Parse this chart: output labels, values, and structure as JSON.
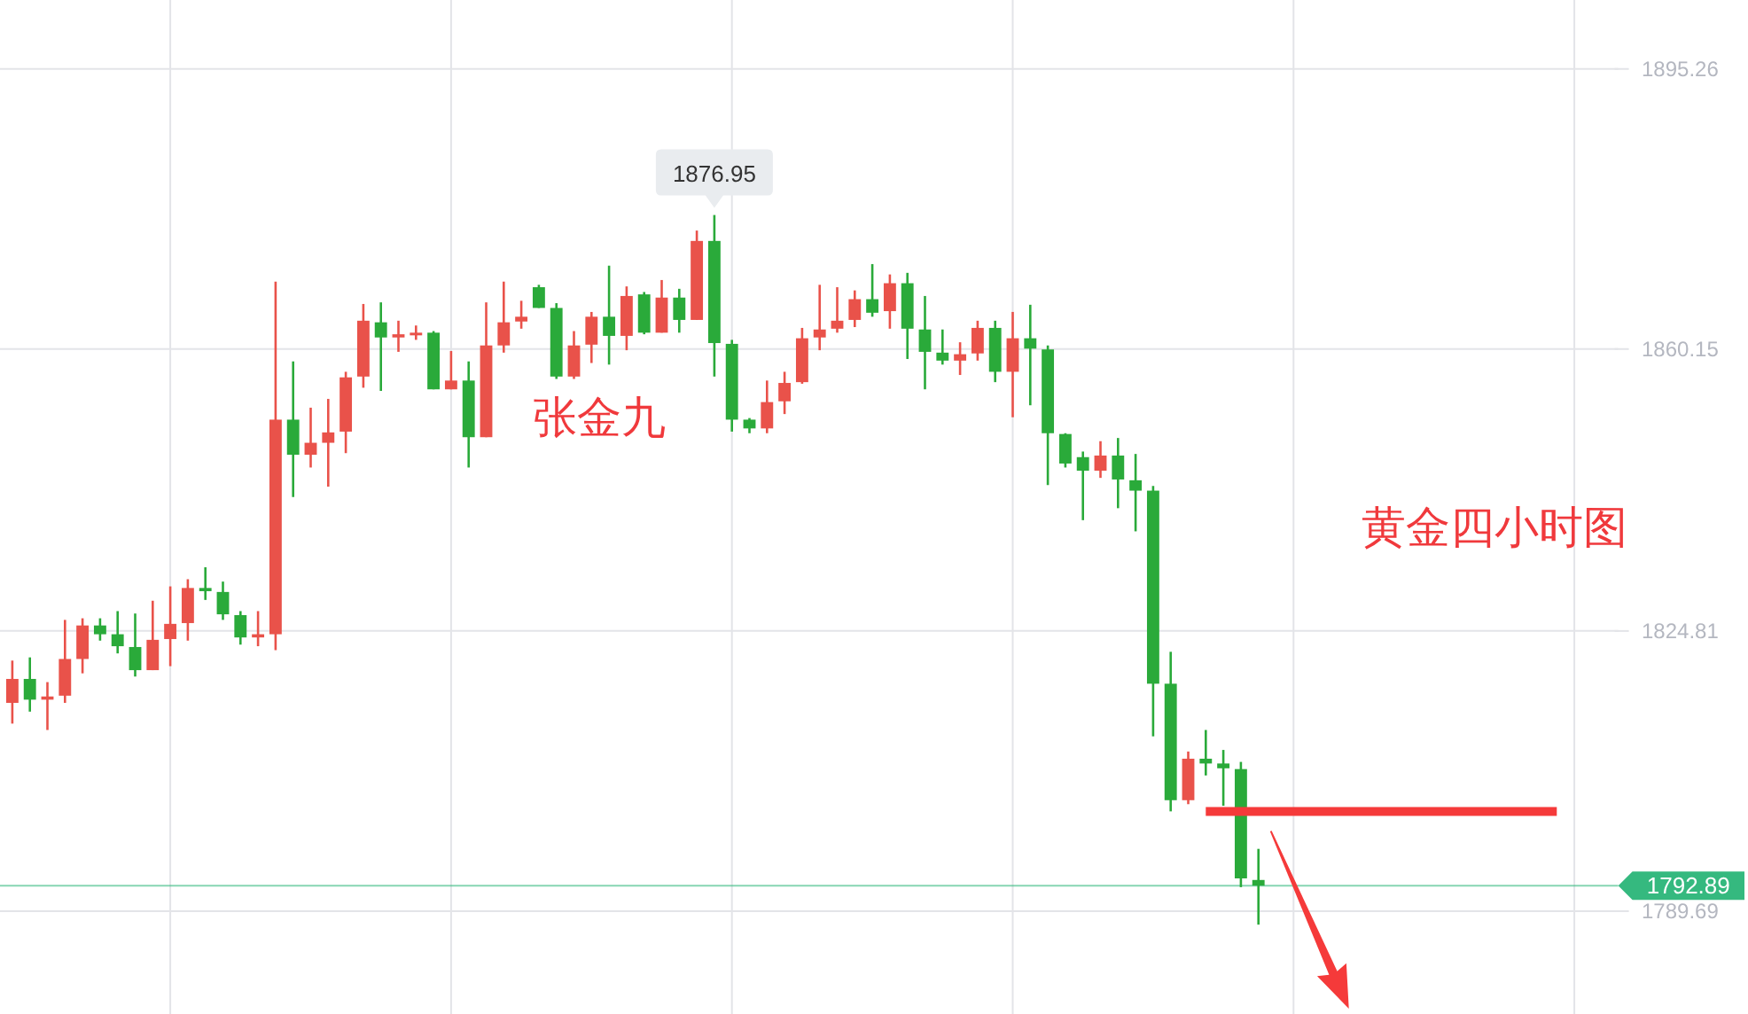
{
  "chart_data": {
    "type": "candlestick",
    "annotations": [
      "张金九",
      "黄金四小时图",
      {
        "text": "1876.95",
        "y": 1876.95
      }
    ],
    "categories": [
      null,
      null,
      null,
      null,
      null,
      null,
      null,
      null,
      null,
      null,
      null,
      null,
      null,
      null,
      null,
      null,
      null,
      null,
      null,
      null,
      null,
      null,
      null,
      null,
      null,
      null,
      null,
      null,
      null,
      null,
      null,
      null,
      null,
      null,
      null,
      null,
      null,
      null,
      null,
      null,
      null,
      null,
      null,
      null,
      null,
      null,
      null,
      null,
      null,
      null,
      null,
      null,
      null,
      null,
      null,
      null,
      null,
      null,
      null,
      null,
      null,
      null,
      null,
      null,
      null,
      null,
      null,
      null,
      null,
      null,
      null,
      null,
      null,
      null,
      null,
      null,
      null,
      null,
      null,
      null,
      null,
      null,
      null,
      null,
      null,
      null,
      null,
      null,
      null,
      null,
      null,
      null
    ],
    "ohlc": [
      [
        1815.8,
        1821.1,
        1813.2,
        1818.8
      ],
      [
        1818.8,
        1821.5,
        1814.7,
        1816.2
      ],
      [
        1816.2,
        1818.4,
        1812.4,
        1816.6
      ],
      [
        1816.7,
        1826.2,
        1815.8,
        1821.3
      ],
      [
        1821.3,
        1826.4,
        1819.5,
        1825.5
      ],
      [
        1825.5,
        1826.4,
        1823.6,
        1824.4
      ],
      [
        1824.4,
        1827.3,
        1822.0,
        1822.9
      ],
      [
        1822.8,
        1827.0,
        1819.1,
        1819.9
      ],
      [
        1819.9,
        1828.6,
        1819.9,
        1823.7
      ],
      [
        1823.8,
        1830.4,
        1820.4,
        1825.7
      ],
      [
        1825.8,
        1831.3,
        1823.6,
        1830.2
      ],
      [
        1830.2,
        1832.8,
        1828.7,
        1829.8
      ],
      [
        1829.7,
        1831.0,
        1826.2,
        1826.9
      ],
      [
        1826.8,
        1827.3,
        1823.1,
        1824.0
      ],
      [
        1824.0,
        1827.3,
        1822.9,
        1824.4
      ],
      [
        1824.4,
        1868.6,
        1822.4,
        1851.3
      ],
      [
        1851.3,
        1858.6,
        1841.6,
        1846.9
      ],
      [
        1846.9,
        1852.8,
        1845.3,
        1848.4
      ],
      [
        1848.4,
        1853.9,
        1842.9,
        1849.7
      ],
      [
        1849.8,
        1857.3,
        1847.1,
        1856.6
      ],
      [
        1856.7,
        1865.8,
        1855.3,
        1863.7
      ],
      [
        1863.5,
        1866.0,
        1854.9,
        1861.6
      ],
      [
        1861.6,
        1863.7,
        1859.8,
        1862.0
      ],
      [
        1861.9,
        1863.1,
        1861.3,
        1862.2
      ],
      [
        1862.2,
        1862.4,
        1855.1,
        1855.1
      ],
      [
        1855.1,
        1859.9,
        1855.1,
        1856.2
      ],
      [
        1856.2,
        1858.6,
        1845.3,
        1849.1
      ],
      [
        1849.1,
        1866.0,
        1849.1,
        1860.6
      ],
      [
        1860.6,
        1868.6,
        1859.7,
        1863.5
      ],
      [
        1863.6,
        1866.2,
        1862.7,
        1864.2
      ],
      [
        1867.9,
        1868.2,
        1865.3,
        1865.3
      ],
      [
        1865.3,
        1865.9,
        1856.4,
        1856.7
      ],
      [
        1856.7,
        1862.4,
        1856.4,
        1860.6
      ],
      [
        1860.7,
        1864.8,
        1858.4,
        1864.2
      ],
      [
        1864.2,
        1870.6,
        1858.2,
        1861.8
      ],
      [
        1861.8,
        1868.0,
        1860.0,
        1866.8
      ],
      [
        1867.0,
        1867.3,
        1862.0,
        1862.2
      ],
      [
        1862.2,
        1868.8,
        1862.2,
        1866.6
      ],
      [
        1866.6,
        1867.7,
        1862.2,
        1863.8
      ],
      [
        1863.8,
        1875.0,
        1863.8,
        1873.7
      ],
      [
        1873.7,
        1876.95,
        1856.7,
        1860.9
      ],
      [
        1860.8,
        1861.3,
        1849.8,
        1851.3
      ],
      [
        1851.3,
        1851.5,
        1849.6,
        1850.2
      ],
      [
        1850.2,
        1856.2,
        1849.6,
        1853.5
      ],
      [
        1853.6,
        1857.3,
        1852.0,
        1855.9
      ],
      [
        1856.0,
        1862.8,
        1855.8,
        1861.5
      ],
      [
        1861.6,
        1868.2,
        1860.0,
        1862.6
      ],
      [
        1862.7,
        1867.9,
        1862.2,
        1863.7
      ],
      [
        1863.8,
        1867.5,
        1862.9,
        1866.4
      ],
      [
        1866.4,
        1870.8,
        1864.2,
        1864.7
      ],
      [
        1864.9,
        1869.5,
        1862.7,
        1868.4
      ],
      [
        1868.4,
        1869.7,
        1858.9,
        1862.7
      ],
      [
        1862.6,
        1866.8,
        1855.1,
        1859.8
      ],
      [
        1859.7,
        1862.6,
        1858.2,
        1858.7
      ],
      [
        1858.7,
        1861.0,
        1856.9,
        1859.5
      ],
      [
        1859.6,
        1863.7,
        1858.7,
        1862.8
      ],
      [
        1862.8,
        1863.7,
        1856.0,
        1857.3
      ],
      [
        1857.3,
        1864.8,
        1851.6,
        1861.5
      ],
      [
        1861.5,
        1865.7,
        1853.1,
        1860.2
      ],
      [
        1860.1,
        1860.6,
        1843.1,
        1849.6
      ],
      [
        1849.5,
        1849.6,
        1845.3,
        1845.8
      ],
      [
        1846.6,
        1847.3,
        1838.7,
        1844.9
      ],
      [
        1844.9,
        1848.6,
        1844.0,
        1846.8
      ],
      [
        1846.8,
        1849.0,
        1840.2,
        1843.8
      ],
      [
        1843.7,
        1847.0,
        1837.3,
        1842.4
      ],
      [
        1842.4,
        1843.0,
        1811.6,
        1818.2
      ],
      [
        1818.2,
        1822.2,
        1802.2,
        1803.6
      ],
      [
        1803.6,
        1809.7,
        1803.1,
        1808.8
      ],
      [
        1808.8,
        1812.4,
        1806.7,
        1808.2
      ],
      [
        1808.2,
        1809.9,
        1802.9,
        1807.6
      ],
      [
        1807.5,
        1808.4,
        1792.7,
        1793.8
      ],
      [
        1793.6,
        1797.5,
        1788.0,
        1792.89
      ],
      null,
      null,
      null,
      null,
      null,
      null,
      null,
      null,
      null,
      null,
      null,
      null,
      null,
      null,
      null,
      null,
      null,
      null,
      null,
      null
    ],
    "colors": [
      "#e9524a",
      "#2aaa3a",
      "#e9524a",
      "#e9524a",
      "#e9524a",
      "#2aaa3a",
      "#2aaa3a",
      "#2aaa3a",
      "#e9524a",
      "#e9524a",
      "#e9524a",
      "#2aaa3a",
      "#2aaa3a",
      "#2aaa3a",
      "#e9524a",
      "#e9524a",
      "#2aaa3a",
      "#e9524a",
      "#e9524a",
      "#e9524a",
      "#e9524a",
      "#2aaa3a",
      "#e9524a",
      "#e9524a",
      "#2aaa3a",
      "#e9524a",
      "#2aaa3a",
      "#e9524a",
      "#e9524a",
      "#e9524a",
      "#2aaa3a",
      "#2aaa3a",
      "#e9524a",
      "#e9524a",
      "#2aaa3a",
      "#e9524a",
      "#2aaa3a",
      "#e9524a",
      "#2aaa3a",
      "#e9524a",
      "#2aaa3a",
      "#2aaa3a",
      "#2aaa3a",
      "#e9524a",
      "#e9524a",
      "#e9524a",
      "#e9524a",
      "#e9524a",
      "#e9524a",
      "#2aaa3a",
      "#e9524a",
      "#2aaa3a",
      "#2aaa3a",
      "#2aaa3a",
      "#e9524a",
      "#e9524a",
      "#2aaa3a",
      "#e9524a",
      "#2aaa3a",
      "#2aaa3a",
      "#2aaa3a",
      "#2aaa3a",
      "#e9524a",
      "#2aaa3a",
      "#2aaa3a",
      "#2aaa3a",
      "#2aaa3a",
      "#e9524a",
      "#2aaa3a",
      "#2aaa3a",
      "#2aaa3a",
      "#2aaa3a",
      null,
      null,
      null,
      null,
      null,
      null,
      null,
      null,
      null,
      null,
      null,
      null,
      null,
      null,
      null,
      null,
      null,
      null,
      null,
      null
    ],
    "series": [
      {
        "type": "line",
        "color": "#f53a3a",
        "values": [
          null,
          null,
          null,
          null,
          null,
          null,
          null,
          null,
          null,
          null,
          null,
          null,
          null,
          null,
          null,
          null,
          null,
          null,
          null,
          null,
          null,
          null,
          null,
          null,
          null,
          null,
          null,
          null,
          null,
          null,
          null,
          null,
          null,
          null,
          null,
          null,
          null,
          null,
          null,
          null,
          null,
          null,
          null,
          null,
          null,
          null,
          null,
          null,
          null,
          null,
          null,
          null,
          null,
          null,
          null,
          null,
          null,
          null,
          null,
          null,
          null,
          null,
          null,
          null,
          null,
          null,
          null,
          null,
          1802.2,
          1802.2,
          1802.2,
          1802.2,
          1802.2,
          1802.2,
          1802.2,
          1802.2,
          1802.2,
          1802.2,
          1802.2,
          1802.2,
          1802.2,
          1802.2,
          1802.2,
          1802.2,
          1802.2,
          1802.2,
          1802.2,
          1802.2,
          1802.2,
          null,
          null,
          null
        ]
      }
    ],
    "ref_lines": [
      {
        "axis": "y",
        "value": 1792.89,
        "label": "1792.89",
        "color": "#35b97f"
      }
    ],
    "ylim": [
      1776.8,
      1903.9
    ],
    "yticks": [
      1895.26,
      1860.15,
      1824.81,
      1789.69
    ],
    "grid": true,
    "tick_labels": "y"
  }
}
